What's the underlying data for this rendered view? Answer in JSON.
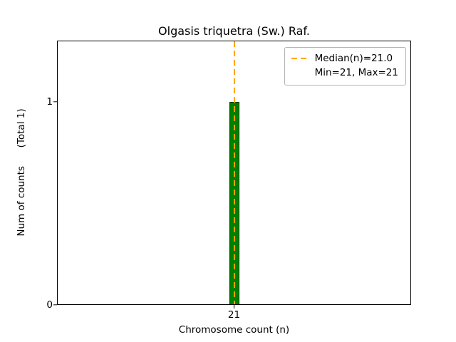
{
  "chart_data": {
    "type": "bar",
    "title": "Olgasis triquetra (Sw.) Raf.",
    "xlabel": "Chromosome count (n)",
    "ylabel": "Num of counts      (Total 1)",
    "categories": [
      21
    ],
    "values": [
      1
    ],
    "total_counts": 1,
    "xticks": [
      21
    ],
    "yticks": [
      0,
      1
    ],
    "ylim": [
      0,
      1.3
    ],
    "median": 21.0,
    "min": 21,
    "max": 21,
    "grid": false,
    "legend_position": "upper right",
    "bar_color": "#008000",
    "bar_edge_color": "#003300",
    "median_line_color": "#FFA500"
  },
  "axes": {
    "xtick_labels": [
      "21"
    ],
    "ytick_labels": [
      "0",
      "1"
    ]
  },
  "legend": {
    "items": [
      {
        "label": "Median(n)=21.0",
        "swatch": "orange-dashed-line"
      },
      {
        "label": "Min=21, Max=21",
        "swatch": "none"
      }
    ]
  }
}
